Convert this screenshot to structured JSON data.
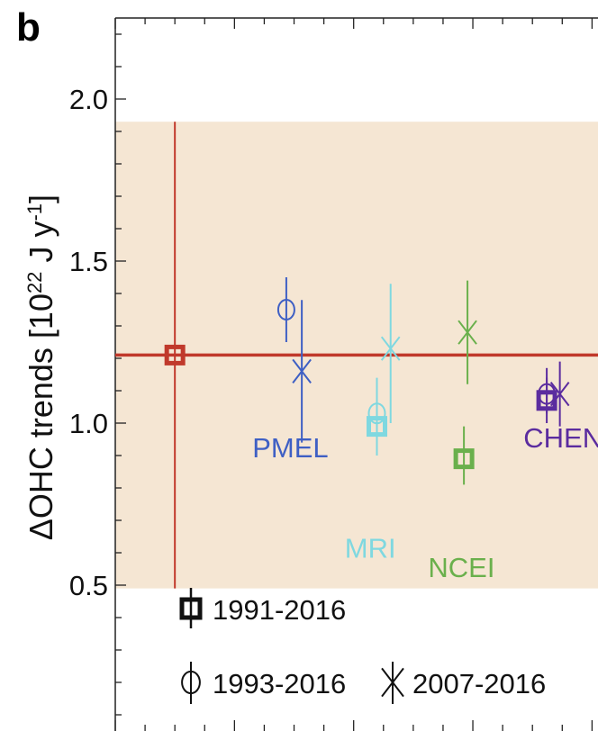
{
  "panel_label": "b",
  "chart_data": {
    "type": "scatter",
    "ylabel_main": "ΔOHC trends [10",
    "ylabel_exp1": "22",
    "ylabel_mid": " J y",
    "ylabel_exp2": "-1",
    "ylabel_end": "]",
    "ylim": [
      0.05,
      2.25
    ],
    "yticks": [
      "0.5",
      "1.0",
      "1.5",
      "2.0"
    ],
    "grid": false,
    "reference": {
      "color": "#c0392b",
      "value": 1.21,
      "band": [
        0.49,
        1.93
      ],
      "band_color": "#f5e6d3"
    },
    "series": [
      {
        "marker": "square",
        "color": "#c0392b",
        "x": 1,
        "y": 1.21,
        "ylow": 0.49,
        "yhigh": 1.93
      },
      {
        "marker": "circle",
        "color": "#3e5fc4",
        "x": 2.87,
        "y": 1.35,
        "ylow": 1.25,
        "yhigh": 1.45
      },
      {
        "marker": "cross",
        "color": "#3e5fc4",
        "x": 3.13,
        "y": 1.16,
        "ylow": 0.94,
        "yhigh": 1.38
      },
      {
        "marker": "circle",
        "color": "#7fd8e0",
        "x": 4.39,
        "y": 1.03,
        "ylow": 0.97,
        "yhigh": 1.1
      },
      {
        "marker": "square",
        "color": "#7fd8e0",
        "x": 4.39,
        "y": 0.99,
        "ylow": 0.9,
        "yhigh": 1.14
      },
      {
        "marker": "cross",
        "color": "#7fd8e0",
        "x": 4.62,
        "y": 1.23,
        "ylow": 1.0,
        "yhigh": 1.43
      },
      {
        "marker": "cross",
        "color": "#6ab04c",
        "x": 5.91,
        "y": 1.28,
        "ylow": 1.12,
        "yhigh": 1.44
      },
      {
        "marker": "square",
        "color": "#6ab04c",
        "x": 5.85,
        "y": 0.89,
        "ylow": 0.81,
        "yhigh": 0.99
      },
      {
        "marker": "square",
        "color": "#5b2c9f",
        "x": 7.24,
        "y": 1.07,
        "ylow": 1.0,
        "yhigh": 1.14
      },
      {
        "marker": "circle",
        "color": "#5b2c9f",
        "x": 7.24,
        "y": 1.09,
        "ylow": 1.03,
        "yhigh": 1.17
      },
      {
        "marker": "cross",
        "color": "#5b2c9f",
        "x": 7.46,
        "y": 1.09,
        "ylow": 0.99,
        "yhigh": 1.19
      }
    ],
    "dataset_labels": [
      {
        "text": "PMEL",
        "color": "#3e5fc4",
        "x": 2.3,
        "y": 0.895
      },
      {
        "text": "MRI",
        "color": "#7fd8e0",
        "x": 3.85,
        "y": 0.585
      },
      {
        "text": "NCEI",
        "color": "#6ab04c",
        "x": 5.25,
        "y": 0.525
      },
      {
        "text": "CHEN",
        "color": "#5b2c9f",
        "x": 6.85,
        "y": 0.925
      }
    ],
    "legend": [
      {
        "marker": "square",
        "label": "1991-2016"
      },
      {
        "marker": "circle",
        "label": "1993-2016"
      },
      {
        "marker": "cross",
        "label": "2007-2016"
      }
    ]
  }
}
